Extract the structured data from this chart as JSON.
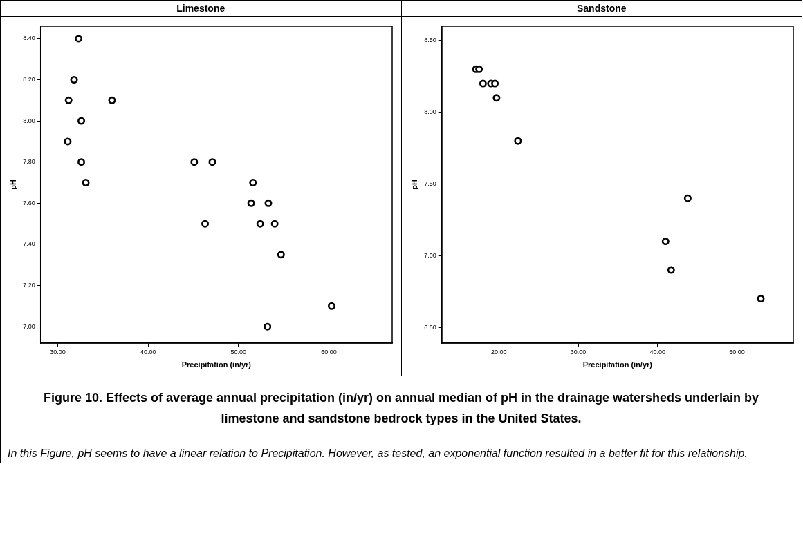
{
  "chart_data": [
    {
      "type": "scatter",
      "title": "Limestone",
      "xlabel": "Precipitation (in/yr)",
      "ylabel": "pH",
      "marker": "circle",
      "grid": false,
      "legend": false,
      "xlim": [
        28.1,
        67.0
      ],
      "xticks": [
        {
          "value": 30,
          "label": "30.00"
        },
        {
          "value": 40,
          "label": "40.00"
        },
        {
          "value": 50,
          "label": "50.00"
        },
        {
          "value": 60,
          "label": "60.00"
        }
      ],
      "ylim": [
        6.92,
        8.46
      ],
      "yticks": [
        {
          "value": 7.0,
          "label": "7.00"
        },
        {
          "value": 7.2,
          "label": "7.20"
        },
        {
          "value": 7.4,
          "label": "7.40"
        },
        {
          "value": 7.6,
          "label": "7.60"
        },
        {
          "value": 7.8,
          "label": "7.80"
        },
        {
          "value": 8.0,
          "label": "8.00"
        },
        {
          "value": 8.2,
          "label": "8.20"
        },
        {
          "value": 8.4,
          "label": "8.40"
        }
      ],
      "series": [
        {
          "color": "#000000",
          "x": [
            32.3,
            31.8,
            31.2,
            36.0,
            32.6,
            31.1,
            32.6,
            33.1,
            45.1,
            47.1,
            46.3,
            51.6,
            51.4,
            53.3,
            52.4,
            54.0,
            54.7,
            53.2,
            60.3
          ],
          "values": [
            8.4,
            8.2,
            8.1,
            8.1,
            8.0,
            7.9,
            7.8,
            7.7,
            7.8,
            7.8,
            7.5,
            7.7,
            7.6,
            7.6,
            7.5,
            7.5,
            7.35,
            7.0,
            7.1
          ]
        }
      ]
    },
    {
      "type": "scatter",
      "title": "Sandstone",
      "xlabel": "Precipitation (in/yr)",
      "ylabel": "pH",
      "marker": "circle",
      "grid": false,
      "legend": false,
      "xlim": [
        12.8,
        57.1
      ],
      "xticks": [
        {
          "value": 20,
          "label": "20.00"
        },
        {
          "value": 30,
          "label": "30.00"
        },
        {
          "value": 40,
          "label": "40.00"
        },
        {
          "value": 50,
          "label": "50.00"
        }
      ],
      "ylim": [
        6.39,
        8.6
      ],
      "yticks": [
        {
          "value": 6.5,
          "label": "6.50"
        },
        {
          "value": 7.0,
          "label": "7.00"
        },
        {
          "value": 7.5,
          "label": "7.50"
        },
        {
          "value": 8.0,
          "label": "8.00"
        },
        {
          "value": 8.5,
          "label": "8.50"
        }
      ],
      "series": [
        {
          "color": "#000000",
          "x": [
            17.1,
            17.5,
            18.0,
            19.0,
            19.5,
            19.7,
            22.4,
            43.8,
            41.0,
            41.7,
            53.0
          ],
          "values": [
            8.3,
            8.3,
            8.2,
            8.2,
            8.2,
            8.1,
            7.8,
            7.4,
            7.1,
            6.9,
            6.7
          ]
        }
      ]
    },
    {
      "type": "other",
      "title": "Figure 10. Effects of average annual precipitation (in/yr) on annual median of pH in the drainage watersheds underlain by limestone and sandstone bedrock types in the United States.",
      "annotations": [
        "In this Figure, pH seems to have a linear relation to Precipitation. However, as tested, an exponential function resulted in a better fit for this relationship."
      ]
    }
  ]
}
